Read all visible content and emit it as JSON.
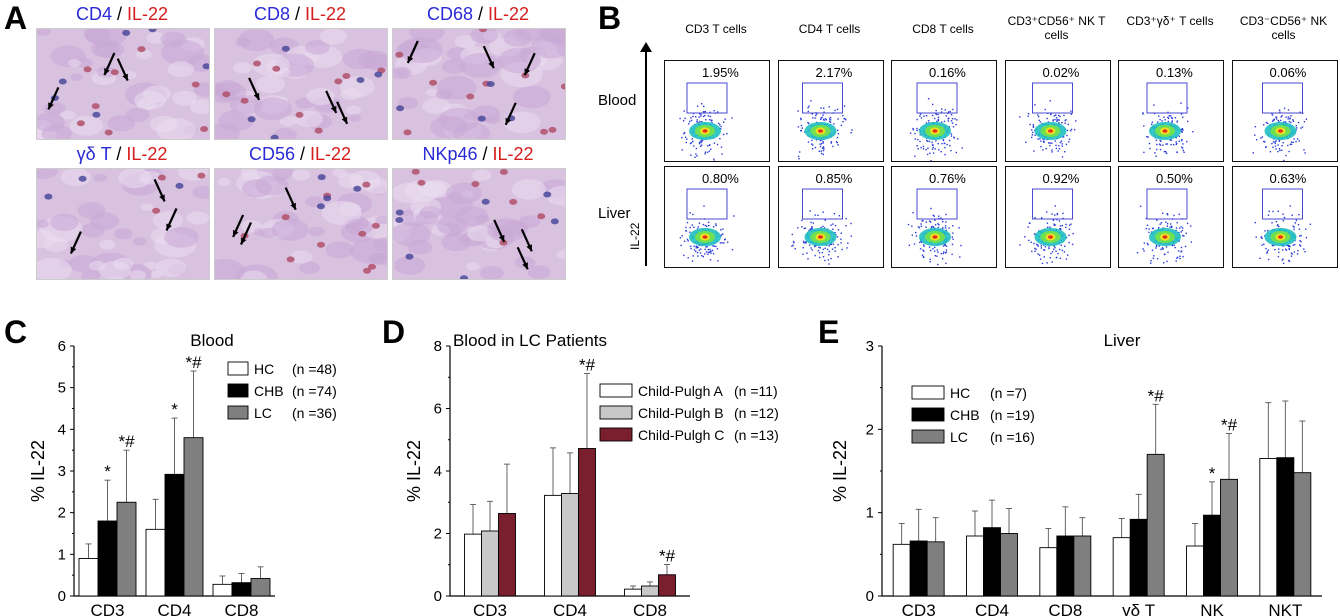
{
  "panels": {
    "A": {
      "label": "A",
      "images": [
        {
          "marker": "CD4",
          "sep": " / ",
          "cytokine": "IL-22"
        },
        {
          "marker": "CD8",
          "sep": " / ",
          "cytokine": "IL-22"
        },
        {
          "marker": "CD68",
          "sep": " / ",
          "cytokine": "IL-22"
        },
        {
          "marker": "γδ T",
          "sep": " / ",
          "cytokine": "IL-22"
        },
        {
          "marker": "CD56",
          "sep": " / ",
          "cytokine": "IL-22"
        },
        {
          "marker": "NKp46",
          "sep": " / ",
          "cytokine": "IL-22"
        }
      ]
    },
    "B": {
      "label": "B",
      "y_axis_label": "IL-22",
      "rows": [
        "Blood",
        "Liver"
      ],
      "columns": [
        {
          "label": "CD3 T cells",
          "blood": "1.95%",
          "liver": "0.80%"
        },
        {
          "label": "CD4 T cells",
          "blood": "2.17%",
          "liver": "0.85%"
        },
        {
          "label": "CD8 T cells",
          "blood": "0.16%",
          "liver": "0.76%"
        },
        {
          "label": "CD3⁺CD56⁺ NK T cells",
          "blood": "0.02%",
          "liver": "0.92%"
        },
        {
          "label": "CD3⁺γδ⁺ T cells",
          "blood": "0.13%",
          "liver": "0.50%"
        },
        {
          "label": "CD3⁻CD56⁺ NK cells",
          "blood": "0.06%",
          "liver": "0.63%"
        }
      ]
    },
    "C": {
      "label": "C"
    },
    "D": {
      "label": "D"
    },
    "E": {
      "label": "E"
    }
  },
  "colors": {
    "hc": "#ffffff",
    "chb": "#000000",
    "lc": "#7f7f7f",
    "child_a": "#ffffff",
    "child_b": "#c8c8c8",
    "child_c": "#7a1f2e",
    "marker_blue": "#2a2ad6",
    "cytokine_red": "#d61c1c"
  },
  "chart_data": [
    {
      "panel": "C",
      "type": "bar",
      "title": "Blood",
      "ylabel": "% IL-22",
      "xlabel": "",
      "ylim": [
        0,
        6
      ],
      "yticks": [
        0,
        1,
        2,
        3,
        4,
        5,
        6
      ],
      "categories": [
        "CD3",
        "CD4",
        "CD8"
      ],
      "legend_position": "top-right",
      "series": [
        {
          "name": "HC",
          "n_label": "(n =48)",
          "color": "#ffffff",
          "values": [
            0.9,
            1.6,
            0.28
          ],
          "errors": [
            0.35,
            0.72,
            0.2
          ]
        },
        {
          "name": "CHB",
          "n_label": "(n =74)",
          "color": "#000000",
          "values": [
            1.8,
            2.92,
            0.32
          ],
          "errors": [
            0.98,
            1.35,
            0.22
          ]
        },
        {
          "name": "LC",
          "n_label": "(n =36)",
          "color": "#7f7f7f",
          "values": [
            2.25,
            3.8,
            0.42
          ],
          "errors": [
            1.25,
            1.6,
            0.28
          ]
        }
      ],
      "annotations": [
        {
          "category": "CD3",
          "series": "CHB",
          "text": "*"
        },
        {
          "category": "CD3",
          "series": "LC",
          "text": "*#"
        },
        {
          "category": "CD4",
          "series": "CHB",
          "text": "*"
        },
        {
          "category": "CD4",
          "series": "LC",
          "text": "*#"
        }
      ]
    },
    {
      "panel": "D",
      "type": "bar",
      "title": "Blood in LC Patients",
      "ylabel": "% IL-22",
      "xlabel": "",
      "ylim": [
        0,
        8
      ],
      "yticks": [
        0,
        2,
        4,
        6,
        8
      ],
      "categories": [
        "CD3",
        "CD4",
        "CD8"
      ],
      "legend_position": "top-right",
      "series": [
        {
          "name": "Child-Pulgh A",
          "n_label": "(n =11)",
          "color": "#ffffff",
          "values": [
            1.98,
            3.22,
            0.22
          ],
          "errors": [
            0.95,
            1.52,
            0.1
          ]
        },
        {
          "name": "Child-Pulgh B",
          "n_label": "(n =12)",
          "color": "#c8c8c8",
          "values": [
            2.08,
            3.28,
            0.32
          ],
          "errors": [
            0.95,
            1.3,
            0.13
          ]
        },
        {
          "name": "Child-Pulgh C",
          "n_label": "(n =13)",
          "color": "#7a1f2e",
          "values": [
            2.64,
            4.72,
            0.68
          ],
          "errors": [
            1.58,
            2.4,
            0.33
          ]
        }
      ],
      "annotations": [
        {
          "category": "CD4",
          "series": "Child-Pulgh C",
          "text": "*#"
        },
        {
          "category": "CD8",
          "series": "Child-Pulgh C",
          "text": "*#"
        }
      ]
    },
    {
      "panel": "E",
      "type": "bar",
      "title": "Liver",
      "ylabel": "% IL-22",
      "xlabel": "",
      "ylim": [
        0,
        3
      ],
      "yticks": [
        0,
        1,
        2,
        3
      ],
      "categories": [
        "CD3",
        "CD4",
        "CD8",
        "γδ T",
        "NK",
        "NKT"
      ],
      "legend_position": "top-left",
      "series": [
        {
          "name": "HC",
          "n_label": "(n =7)",
          "color": "#ffffff",
          "values": [
            0.62,
            0.72,
            0.58,
            0.7,
            0.6,
            1.65
          ],
          "errors": [
            0.25,
            0.3,
            0.23,
            0.23,
            0.27,
            0.67
          ]
        },
        {
          "name": "CHB",
          "n_label": "(n =19)",
          "color": "#000000",
          "values": [
            0.66,
            0.82,
            0.72,
            0.92,
            0.97,
            1.66
          ],
          "errors": [
            0.38,
            0.33,
            0.35,
            0.3,
            0.4,
            0.68
          ]
        },
        {
          "name": "LC",
          "n_label": "(n =16)",
          "color": "#7f7f7f",
          "values": [
            0.65,
            0.75,
            0.72,
            1.7,
            1.4,
            1.48
          ],
          "errors": [
            0.29,
            0.3,
            0.22,
            0.6,
            0.55,
            0.62
          ]
        }
      ],
      "annotations": [
        {
          "category": "γδ T",
          "series": "LC",
          "text": "*#"
        },
        {
          "category": "NK",
          "series": "CHB",
          "text": "*"
        },
        {
          "category": "NK",
          "series": "LC",
          "text": "*#"
        }
      ]
    }
  ]
}
